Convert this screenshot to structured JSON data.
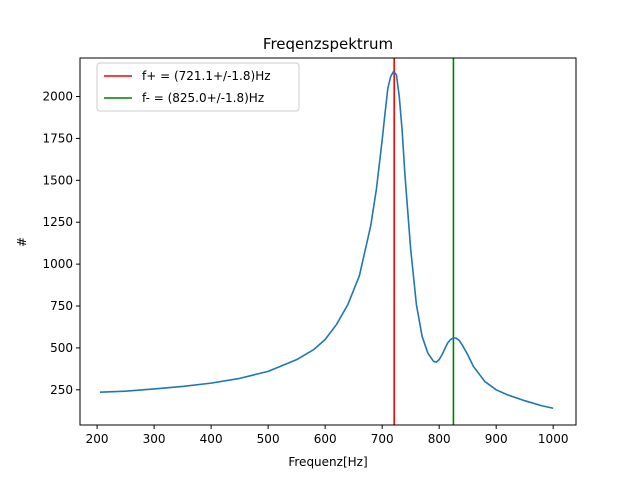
{
  "chart_data": {
    "type": "line",
    "title": "Freqenzspektrum",
    "xlabel": "Frequenz[Hz]",
    "ylabel": "#",
    "xlim": [
      170,
      1040
    ],
    "ylim": [
      40,
      2230
    ],
    "xticks": [
      200,
      300,
      400,
      500,
      600,
      700,
      800,
      900,
      1000
    ],
    "yticks": [
      250,
      500,
      750,
      1000,
      1250,
      1500,
      1750,
      2000
    ],
    "grid": false,
    "legend_position": "upper-left",
    "series": [
      {
        "color": "#1f77b4",
        "x": [
          205,
          250,
          300,
          350,
          400,
          450,
          500,
          550,
          580,
          600,
          620,
          640,
          660,
          680,
          690,
          700,
          705,
          710,
          715,
          720,
          725,
          730,
          735,
          740,
          750,
          760,
          770,
          780,
          790,
          795,
          800,
          805,
          810,
          815,
          820,
          825,
          830,
          835,
          840,
          850,
          860,
          880,
          900,
          920,
          950,
          980,
          1000
        ],
        "y": [
          236,
          242,
          255,
          270,
          290,
          318,
          360,
          430,
          490,
          550,
          640,
          760,
          930,
          1230,
          1450,
          1740,
          1900,
          2050,
          2120,
          2150,
          2130,
          2000,
          1800,
          1530,
          1090,
          760,
          570,
          470,
          420,
          415,
          430,
          460,
          495,
          530,
          550,
          560,
          558,
          545,
          520,
          460,
          390,
          300,
          250,
          220,
          185,
          155,
          140
        ]
      }
    ],
    "vlines": [
      {
        "name": "f+ = (721.1+/-1.8)Hz",
        "x": 721.1,
        "color": "#ff0000"
      },
      {
        "name": "f- = (825.0+/-1.8)Hz",
        "x": 825.0,
        "color": "#008000"
      }
    ]
  }
}
